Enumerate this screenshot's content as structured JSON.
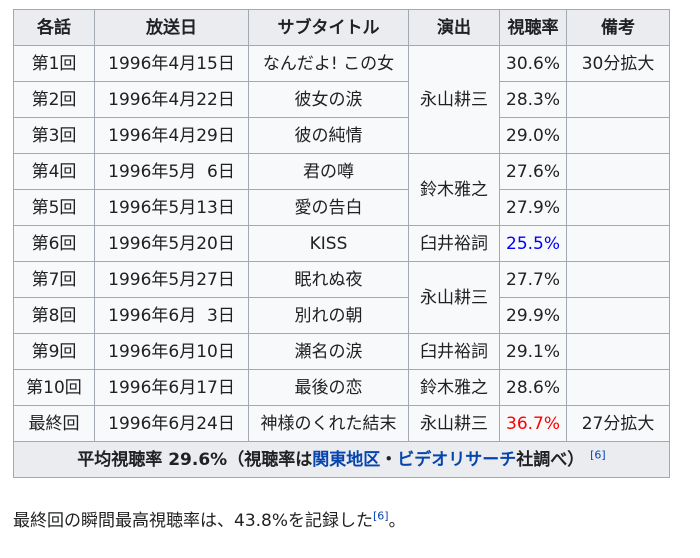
{
  "headers": [
    "各話",
    "放送日",
    "サブタイトル",
    "演出",
    "視聴率",
    "備考"
  ],
  "rows": [
    {
      "ep": "第1回",
      "date": "1996年4月15日",
      "subtitle": "なんだよ! この女",
      "rate": "30.6%",
      "note": "30分拡大"
    },
    {
      "ep": "第2回",
      "date": "1996年4月22日",
      "subtitle": "彼女の涙",
      "rate": "28.3%"
    },
    {
      "ep": "第3回",
      "date": "1996年4月29日",
      "subtitle": "彼の純情",
      "rate": "29.0%"
    },
    {
      "ep": "第4回",
      "date": "1996年5月  6日",
      "subtitle": "君の噂",
      "rate": "27.6%"
    },
    {
      "ep": "第5回",
      "date": "1996年5月13日",
      "subtitle": "愛の告白",
      "rate": "27.9%"
    },
    {
      "ep": "第6回",
      "date": "1996年5月20日",
      "subtitle": "KISS",
      "rate": "25.5%"
    },
    {
      "ep": "第7回",
      "date": "1996年5月27日",
      "subtitle": "眠れぬ夜",
      "rate": "27.7%"
    },
    {
      "ep": "第8回",
      "date": "1996年6月  3日",
      "subtitle": "別れの朝",
      "rate": "29.9%"
    },
    {
      "ep": "第9回",
      "date": "1996年6月10日",
      "subtitle": "瀬名の涙",
      "rate": "29.1%"
    },
    {
      "ep": "第10回",
      "date": "1996年6月17日",
      "subtitle": "最後の恋",
      "rate": "28.6%"
    },
    {
      "ep": "最終回",
      "date": "1996年6月24日",
      "subtitle": "神様のくれた結末",
      "rate": "36.7%",
      "note": "27分拡大"
    }
  ],
  "directors": [
    "永山耕三",
    "鈴木雅之",
    "臼井裕詞",
    "永山耕三",
    "臼井裕詞",
    "鈴木雅之",
    "永山耕三"
  ],
  "footer": {
    "prefix": "平均視聴率 29.6%（視聴率は",
    "link1": "関東地区",
    "sep": "・",
    "link2": "ビデオリサーチ",
    "suffix": "社調べ）",
    "ref": "[6]"
  },
  "below": {
    "text": "最終回の瞬間最高視聴率は、43.8%を記録した",
    "ref": "[6]",
    "end": "。"
  },
  "colors": {
    "lowest_rating": "#0000ff",
    "highest_rating": "#ff0000",
    "link": "#0645ad"
  }
}
